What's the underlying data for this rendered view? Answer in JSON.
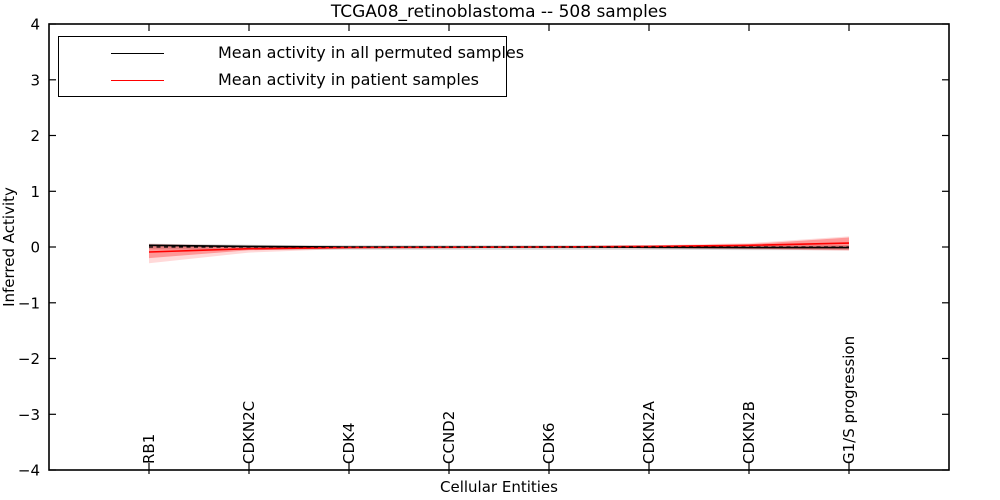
{
  "chart_data": {
    "type": "line",
    "title": "TCGA08_retinoblastoma -- 508 samples",
    "xlabel": "Cellular Entities",
    "ylabel": "Inferred Activity",
    "grid": false,
    "legend_position": "upper left",
    "ylim": [
      -4,
      4
    ],
    "yticks": [
      -4,
      -3,
      -2,
      -1,
      0,
      1,
      2,
      3,
      4
    ],
    "categories": [
      "RB1",
      "CDKN2C",
      "CDK4",
      "CCND2",
      "CDK6",
      "CDKN2A",
      "CDKN2B",
      "G1/S progression"
    ],
    "series": [
      {
        "name": "Mean activity in all permuted samples",
        "color": "#000000",
        "style": "solid",
        "values": [
          0.03,
          0.01,
          0.0,
          0.0,
          0.0,
          -0.005,
          -0.01,
          -0.01
        ]
      },
      {
        "name": "Mean activity in patient samples",
        "color": "#ff0000",
        "style": "solid",
        "values": [
          -0.09,
          -0.03,
          -0.01,
          -0.005,
          0.0,
          0.01,
          0.03,
          0.07
        ]
      },
      {
        "name": "zero reference",
        "color": "#000000",
        "style": "dashed",
        "values": [
          0,
          0,
          0,
          0,
          0,
          0,
          0,
          0
        ]
      }
    ],
    "bands": [
      {
        "name": "permuted samples spread",
        "color": "#000000",
        "opacity": 0.16,
        "upper": [
          0.06,
          0.04,
          0.03,
          0.03,
          0.03,
          0.03,
          0.03,
          0.035
        ],
        "lower": [
          -0.04,
          -0.05,
          -0.05,
          -0.05,
          -0.05,
          -0.05,
          -0.055,
          -0.055
        ]
      },
      {
        "name": "patient samples spread outer",
        "color": "#ff0000",
        "opacity": 0.15,
        "upper": [
          0.06,
          0.02,
          0.01,
          0.01,
          0.015,
          0.03,
          0.07,
          0.19
        ],
        "lower": [
          -0.29,
          -0.1,
          -0.03,
          -0.02,
          -0.02,
          -0.025,
          -0.04,
          -0.07
        ]
      },
      {
        "name": "patient samples spread inner",
        "color": "#ff0000",
        "opacity": 0.3,
        "upper": [
          0.04,
          0.01,
          0.005,
          0.005,
          0.01,
          0.02,
          0.05,
          0.17
        ],
        "lower": [
          -0.2,
          -0.06,
          -0.02,
          -0.01,
          -0.01,
          -0.015,
          -0.03,
          -0.05
        ]
      }
    ]
  },
  "legend": {
    "items": [
      {
        "label": "Mean activity in all permuted samples",
        "color": "#000000"
      },
      {
        "label": "Mean activity in patient samples",
        "color": "#ff0000"
      }
    ]
  }
}
